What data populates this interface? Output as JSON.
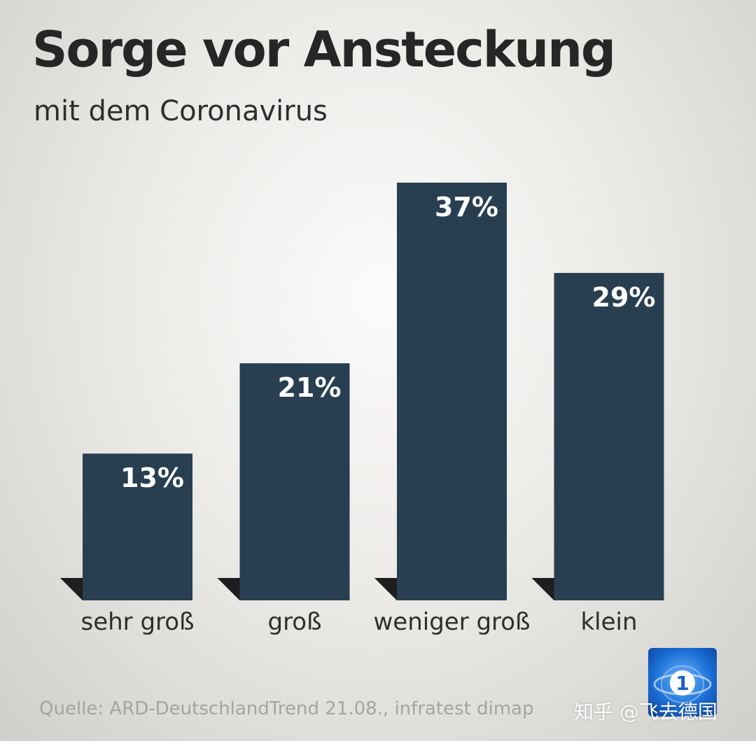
{
  "title": "Sorge vor Ansteckung",
  "subtitle": "mit dem Coronavirus",
  "source": "Quelle: ARD-DeutschlandTrend 21.08., infratest dimap",
  "watermark": "知乎 @飞去德国",
  "logo": {
    "name": "ard-logo",
    "text": "1"
  },
  "colors": {
    "bar": "#283f52",
    "bar_shadow": "#1a1a1a",
    "label": "#ffffff",
    "category": "#2e2e2e"
  },
  "chart_data": {
    "type": "bar",
    "title": "Sorge vor Ansteckung",
    "subtitle": "mit dem Coronavirus",
    "categories": [
      "sehr groß",
      "groß",
      "weniger groß",
      "klein"
    ],
    "values": [
      13,
      21,
      37,
      29
    ],
    "value_labels": [
      "13%",
      "21%",
      "37%",
      "29%"
    ],
    "unit": "%",
    "ylim": [
      0,
      37
    ],
    "grid": false,
    "xlabel": "",
    "ylabel": ""
  }
}
